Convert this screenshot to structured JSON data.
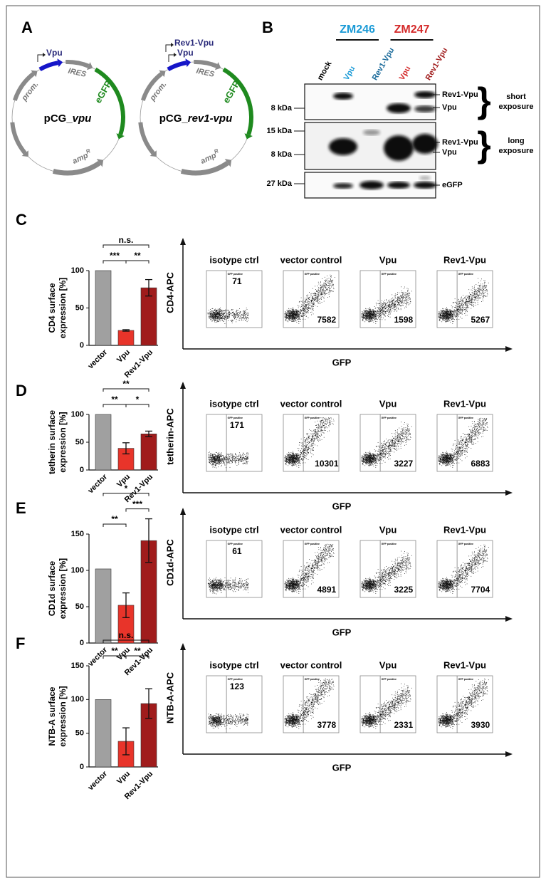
{
  "panel_a": {
    "label": "A",
    "plasmids": [
      {
        "genes": [
          "Vpu"
        ],
        "prom": "prom.",
        "ires": "IRES",
        "egfp": "eGFP",
        "amp": "amp",
        "amp_sup": "R",
        "name_prefix": "pCG_",
        "name_gene": "vpu"
      },
      {
        "genes": [
          "Rev1-Vpu",
          "Vpu"
        ],
        "prom": "prom.",
        "ires": "IRES",
        "egfp": "eGFP",
        "amp": "amp",
        "amp_sup": "R",
        "name_prefix": "pCG_",
        "name_gene": "rev1-vpu"
      }
    ]
  },
  "panel_b": {
    "label": "B",
    "strains": [
      {
        "name": "ZM246",
        "color": "#1a9ad6"
      },
      {
        "name": "ZM247",
        "color": "#d42a2a"
      }
    ],
    "lanes": [
      {
        "name": "mock",
        "color": "#000000"
      },
      {
        "name": "Vpu",
        "color": "#1a9ad6"
      },
      {
        "name": "Rev1-Vpu",
        "color": "#1a6a9a"
      },
      {
        "name": "Vpu",
        "color": "#d42a2a"
      },
      {
        "name": "Rev1-Vpu",
        "color": "#a01c1c"
      }
    ],
    "blots": [
      {
        "markers": [
          "8 kDa"
        ],
        "bands": [
          "Rev1-Vpu",
          "Vpu"
        ],
        "exposure": [
          "short",
          "exposure"
        ]
      },
      {
        "markers": [
          "15 kDa",
          "8 kDa"
        ],
        "bands": [
          "Rev1-Vpu",
          "Vpu"
        ],
        "exposure": [
          "long",
          "exposure"
        ]
      },
      {
        "markers": [
          "27 kDa"
        ],
        "bands": [
          "eGFP"
        ]
      }
    ]
  },
  "bar_panels": [
    {
      "label": "C",
      "ylabel": [
        "CD4 surface",
        "expression [%]"
      ],
      "categories": [
        "vector",
        "Vpu",
        "Rev1-Vpu"
      ],
      "colors": [
        "#a0a0a0",
        "#e8342a",
        "#a01c1c"
      ],
      "values": [
        100,
        20,
        77
      ],
      "errors": [
        0,
        1,
        11
      ],
      "ylim": [
        0,
        100
      ],
      "yticks": [
        0,
        50,
        100
      ],
      "brackets": [
        {
          "from": 0,
          "to": 2,
          "text": "n.s."
        },
        {
          "from": 0,
          "to": 1,
          "text": "***"
        },
        {
          "from": 1,
          "to": 2,
          "text": "**"
        }
      ],
      "flow": {
        "ylabel": "CD4-APC",
        "xlabel": "GFP",
        "gate_label": "GFP positive",
        "plots": [
          {
            "title": "isotype ctrl",
            "count": 71
          },
          {
            "title": "vector control",
            "count": 7582
          },
          {
            "title": "Vpu",
            "count": 1598
          },
          {
            "title": "Rev1-Vpu",
            "count": 5267
          }
        ]
      }
    },
    {
      "label": "D",
      "ylabel": [
        "tetherin surface",
        "expression [%]"
      ],
      "categories": [
        "vector",
        "Vpu",
        "Rev1-Vpu"
      ],
      "colors": [
        "#a0a0a0",
        "#e8342a",
        "#a01c1c"
      ],
      "values": [
        100,
        39,
        65
      ],
      "errors": [
        0,
        10,
        5
      ],
      "ylim": [
        0,
        100
      ],
      "yticks": [
        0,
        50,
        100
      ],
      "brackets": [
        {
          "from": 0,
          "to": 2,
          "text": "**"
        },
        {
          "from": 0,
          "to": 1,
          "text": "**"
        },
        {
          "from": 1,
          "to": 2,
          "text": "*"
        }
      ],
      "flow": {
        "ylabel": "tetherin-APC",
        "xlabel": "GFP",
        "gate_label": "GFP positive",
        "plots": [
          {
            "title": "isotype ctrl",
            "count": 171
          },
          {
            "title": "vector control",
            "count": 10301
          },
          {
            "title": "Vpu",
            "count": 3227
          },
          {
            "title": "Rev1-Vpu",
            "count": 6883
          }
        ]
      }
    },
    {
      "label": "E",
      "ylabel": [
        "CD1d surface",
        "expression [%]"
      ],
      "categories": [
        "vector",
        "Vpu",
        "Rev1-Vpu"
      ],
      "colors": [
        "#a0a0a0",
        "#e8342a",
        "#a01c1c"
      ],
      "values": [
        102,
        52,
        141
      ],
      "errors": [
        0,
        17,
        30
      ],
      "ylim": [
        0,
        150
      ],
      "yticks": [
        0,
        50,
        100,
        150
      ],
      "brackets": [
        {
          "from": 0,
          "to": 2,
          "text": "*"
        },
        {
          "from": 0,
          "to": 1,
          "text": "**"
        },
        {
          "from": 1,
          "to": 2,
          "text": "***"
        }
      ],
      "flow": {
        "ylabel": "CD1d-APC",
        "xlabel": "GFP",
        "gate_label": "GFP positive",
        "plots": [
          {
            "title": "isotype ctrl",
            "count": 61
          },
          {
            "title": "vector control",
            "count": 4891
          },
          {
            "title": "Vpu",
            "count": 3225
          },
          {
            "title": "Rev1-Vpu",
            "count": 7704
          }
        ]
      }
    },
    {
      "label": "F",
      "ylabel": [
        "NTB-A surface",
        "expression [%]"
      ],
      "categories": [
        "vector",
        "Vpu",
        "Rev1-Vpu"
      ],
      "colors": [
        "#a0a0a0",
        "#e8342a",
        "#a01c1c"
      ],
      "values": [
        100,
        38,
        94
      ],
      "errors": [
        0,
        20,
        22
      ],
      "ylim": [
        0,
        150
      ],
      "yticks": [
        0,
        50,
        100,
        150
      ],
      "brackets": [
        {
          "from": 0,
          "to": 2,
          "text": "n.s."
        },
        {
          "from": 0,
          "to": 1,
          "text": "**"
        },
        {
          "from": 1,
          "to": 2,
          "text": "**"
        }
      ],
      "flow": {
        "ylabel": "NTB-A-APC",
        "xlabel": "GFP",
        "gate_label": "GFP positive",
        "plots": [
          {
            "title": "isotype ctrl",
            "count": 123
          },
          {
            "title": "vector control",
            "count": 3778
          },
          {
            "title": "Vpu",
            "count": 2331
          },
          {
            "title": "Rev1-Vpu",
            "count": 3930
          }
        ]
      }
    }
  ]
}
